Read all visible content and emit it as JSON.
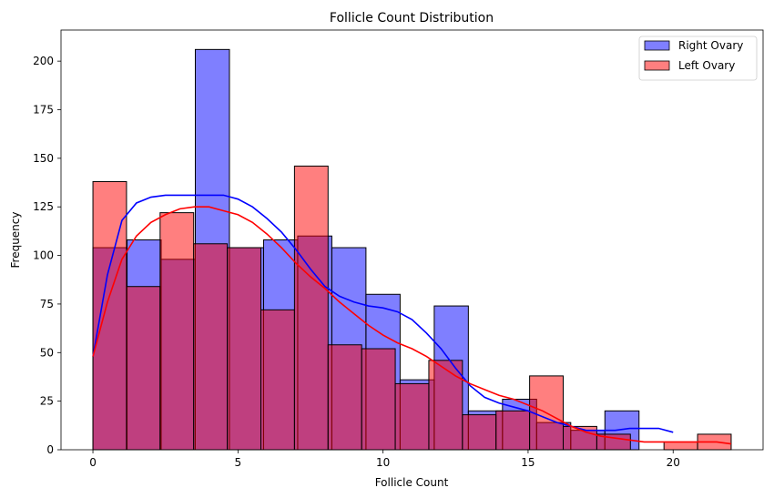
{
  "chart_data": {
    "type": "histogram",
    "title": "Follicle Count Distribution",
    "xlabel": "Follicle Count",
    "ylabel": "Frequency",
    "xlim": [
      -1.1,
      23.1
    ],
    "ylim": [
      0,
      216
    ],
    "xticks": [
      0,
      5,
      10,
      15,
      20
    ],
    "yticks": [
      0,
      25,
      50,
      75,
      100,
      125,
      150,
      175,
      200
    ],
    "legend_position": "top-right",
    "grid": false,
    "series": [
      {
        "name": "Right Ovary",
        "color": "#0000ff",
        "bar_opacity": 0.5,
        "bin_start": 0,
        "bin_width": 1.1765,
        "values": [
          104,
          108,
          98,
          206,
          104,
          108,
          110,
          104,
          80,
          36,
          74,
          20,
          26,
          14,
          10,
          20,
          0
        ],
        "kde": [
          [
            0,
            48
          ],
          [
            0.5,
            90
          ],
          [
            1,
            118
          ],
          [
            1.5,
            127
          ],
          [
            2,
            130
          ],
          [
            2.5,
            131
          ],
          [
            3,
            131
          ],
          [
            3.5,
            131
          ],
          [
            4,
            131
          ],
          [
            4.5,
            131
          ],
          [
            5,
            129
          ],
          [
            5.5,
            125
          ],
          [
            6,
            119
          ],
          [
            6.5,
            112
          ],
          [
            7,
            103
          ],
          [
            7.5,
            93
          ],
          [
            8,
            84
          ],
          [
            8.5,
            79
          ],
          [
            9,
            76
          ],
          [
            9.5,
            74
          ],
          [
            10,
            73
          ],
          [
            10.5,
            71
          ],
          [
            11,
            67
          ],
          [
            11.5,
            60
          ],
          [
            12,
            52
          ],
          [
            12.5,
            42
          ],
          [
            13,
            33
          ],
          [
            13.5,
            27
          ],
          [
            14,
            24
          ],
          [
            14.5,
            22
          ],
          [
            15,
            20
          ],
          [
            15.5,
            17
          ],
          [
            16,
            14
          ],
          [
            16.5,
            12
          ],
          [
            17,
            10
          ],
          [
            17.5,
            10
          ],
          [
            18,
            10
          ],
          [
            18.5,
            11
          ],
          [
            19,
            11
          ],
          [
            19.5,
            11
          ],
          [
            20,
            9
          ]
        ]
      },
      {
        "name": "Left Ovary",
        "color": "#ff0000",
        "bar_opacity": 0.5,
        "bin_start": 0,
        "bin_width": 1.1579,
        "values": [
          138,
          84,
          122,
          106,
          104,
          72,
          146,
          54,
          52,
          34,
          46,
          18,
          20,
          38,
          12,
          8,
          0,
          4,
          8
        ],
        "kde": [
          [
            0,
            48
          ],
          [
            0.5,
            76
          ],
          [
            1,
            98
          ],
          [
            1.5,
            110
          ],
          [
            2,
            117
          ],
          [
            2.5,
            121
          ],
          [
            3,
            124
          ],
          [
            3.5,
            125
          ],
          [
            4,
            125
          ],
          [
            4.5,
            123
          ],
          [
            5,
            121
          ],
          [
            5.5,
            117
          ],
          [
            6,
            111
          ],
          [
            6.5,
            104
          ],
          [
            7,
            96
          ],
          [
            7.5,
            89
          ],
          [
            8,
            83
          ],
          [
            8.5,
            76
          ],
          [
            9,
            70
          ],
          [
            9.5,
            64
          ],
          [
            10,
            59
          ],
          [
            10.5,
            55
          ],
          [
            11,
            52
          ],
          [
            11.5,
            48
          ],
          [
            12,
            43
          ],
          [
            12.5,
            38
          ],
          [
            13,
            34
          ],
          [
            13.5,
            31
          ],
          [
            14,
            28
          ],
          [
            14.5,
            26
          ],
          [
            15,
            23
          ],
          [
            15.5,
            20
          ],
          [
            16,
            16
          ],
          [
            16.5,
            12
          ],
          [
            17,
            9
          ],
          [
            17.5,
            7
          ],
          [
            18,
            6
          ],
          [
            18.5,
            5
          ],
          [
            19,
            4
          ],
          [
            19.5,
            4
          ],
          [
            20,
            4
          ],
          [
            20.5,
            4
          ],
          [
            21,
            4
          ],
          [
            21.5,
            4
          ],
          [
            22,
            3
          ]
        ]
      }
    ]
  }
}
